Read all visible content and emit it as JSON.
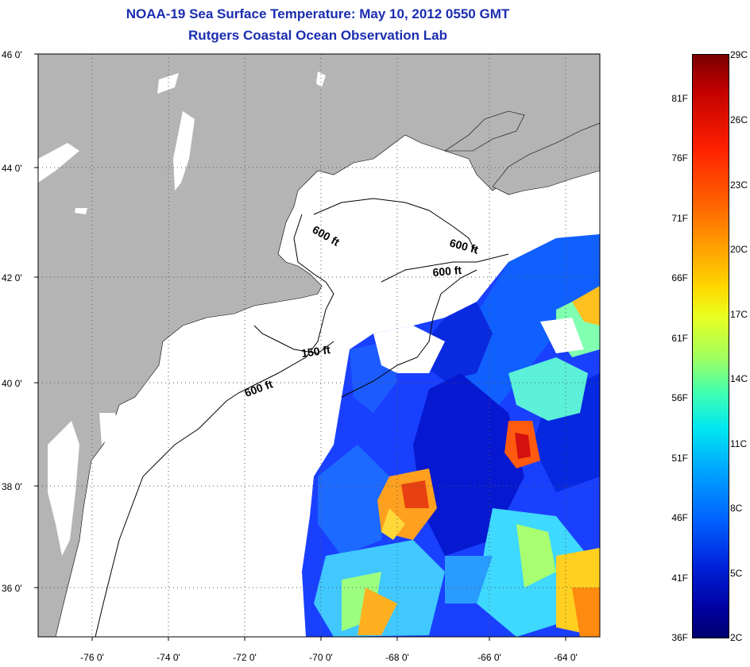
{
  "title": {
    "line1": "NOAA-19 Sea Surface Temperature:  May 10, 2012 0550 GMT",
    "line2": "Rutgers Coastal Ocean Observation Lab"
  },
  "axes": {
    "lat_labels": [
      "46 0'",
      "44 0'",
      "42 0'",
      "40 0'",
      "38 0'",
      "36 0'"
    ],
    "lon_labels": [
      "-76 0'",
      "-74 0'",
      "-72 0'",
      "-70 0'",
      "-68 0'",
      "-66 0'",
      "-64 0'"
    ]
  },
  "contours": [
    "600 ft",
    "600 ft",
    "600 ft",
    "150 ft",
    "600 ft"
  ],
  "colorbar": {
    "fahrenheit": [
      "81F",
      "76F",
      "71F",
      "66F",
      "61F",
      "56F",
      "51F",
      "46F",
      "41F",
      "36F"
    ],
    "celsius": [
      "29C",
      "26C",
      "23C",
      "20C",
      "17C",
      "14C",
      "11C",
      "8C",
      "5C",
      "2C"
    ]
  },
  "colors": {
    "land": "#b4b4b4",
    "ocean_no_data": "#ffffff",
    "title": "#1a2db0"
  }
}
